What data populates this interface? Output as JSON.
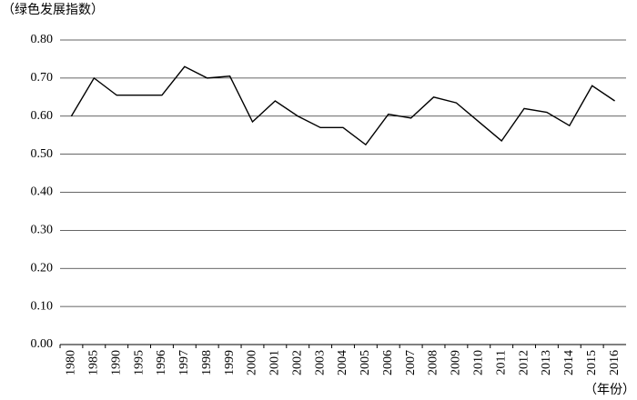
{
  "chart_data": {
    "type": "line",
    "y_label": "（绿色发展指数）",
    "x_label": "（年份）",
    "categories": [
      "1980",
      "1985",
      "1990",
      "1995",
      "1996",
      "1997",
      "1998",
      "1999",
      "2000",
      "2001",
      "2002",
      "2003",
      "2004",
      "2005",
      "2006",
      "2007",
      "2008",
      "2009",
      "2010",
      "2011",
      "2012",
      "2013",
      "2014",
      "2015",
      "2016"
    ],
    "values": [
      0.6,
      0.7,
      0.655,
      0.655,
      0.655,
      0.73,
      0.7,
      0.705,
      0.585,
      0.64,
      0.6,
      0.57,
      0.57,
      0.525,
      0.605,
      0.595,
      0.65,
      0.635,
      0.585,
      0.535,
      0.62,
      0.61,
      0.575,
      0.68,
      0.64
    ],
    "color": "#000000",
    "ylim": [
      0,
      0.8
    ],
    "yticks": [
      {
        "value": 0,
        "label": "0.00"
      },
      {
        "value": 0.1,
        "label": "0.10"
      },
      {
        "value": 0.2,
        "label": "0.20"
      },
      {
        "value": 0.3,
        "label": "0.30"
      },
      {
        "value": 0.4,
        "label": "0.40"
      },
      {
        "value": 0.5,
        "label": "0.50"
      },
      {
        "value": 0.6,
        "label": "0.60"
      },
      {
        "value": 0.7,
        "label": "0.70"
      },
      {
        "value": 0.8,
        "label": "0.80"
      }
    ],
    "grid": true
  }
}
